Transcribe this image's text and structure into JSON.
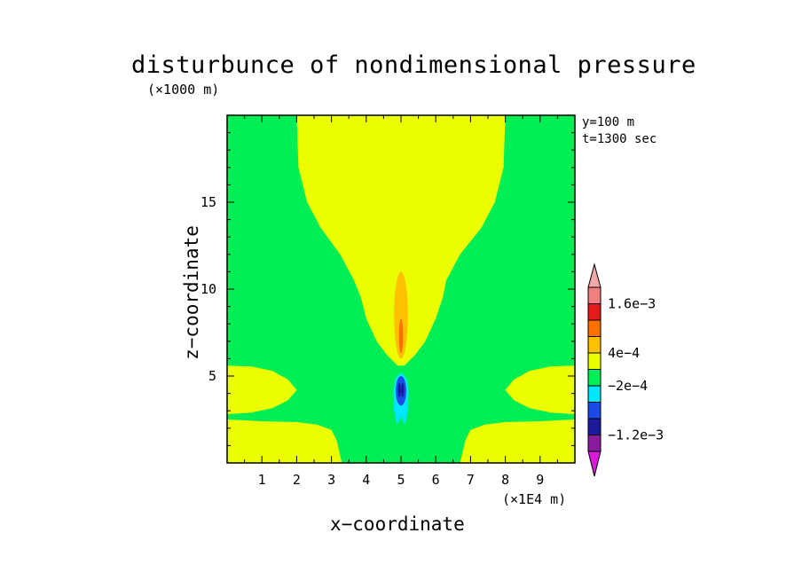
{
  "chart_data": {
    "type": "heatmap",
    "title": "disturbunce of nondimensional pressure",
    "xlabel": "x−coordinate",
    "ylabel": "z−coordinate",
    "x_unit": "(×1E4 m)",
    "y_unit": "(×1000 m)",
    "xlim": [
      0,
      10
    ],
    "ylim": [
      0,
      20
    ],
    "x_ticks": [
      1,
      2,
      3,
      4,
      5,
      6,
      7,
      8,
      9
    ],
    "y_ticks": [
      5,
      10,
      15
    ],
    "annotations": [
      "y=100 m",
      "t=1300 sec"
    ],
    "colorbar": {
      "levels": [
        "-1.6e-3",
        "-1.2e-3",
        "-8e-4",
        "-4e-4",
        "-2e-4",
        "0",
        "4e-4",
        "8e-4",
        "1.2e-3",
        "1.6e-3",
        "2e-3"
      ],
      "labels": [
        "−1.2e−3",
        "−2e−4",
        "4e−4",
        "1.6e−3"
      ],
      "colors": [
        "#d81bd8",
        "#8b1a9e",
        "#1a1a9a",
        "#1b4be6",
        "#00e6ff",
        "#00ee55",
        "#ebff00",
        "#ffc000",
        "#ff7000",
        "#e51a1a",
        "#f08080",
        "#f0a8a8"
      ]
    },
    "regions": [
      {
        "level": "-2e-4 to 0",
        "color": "#00ee55",
        "area": "background"
      },
      {
        "level": "0 to 4e-4",
        "color": "#ebff00",
        "area": "central plume x 2-8, z 5.5-20"
      },
      {
        "level": "0 to 4e-4",
        "color": "#ebff00",
        "area": "bottom left lobe x 0-3.3, z 0-2.5"
      },
      {
        "level": "0 to 4e-4",
        "color": "#ebff00",
        "area": "bottom right lobe x 6.7-10, z 0-2.5"
      },
      {
        "level": "0 to 4e-4",
        "color": "#ebff00",
        "area": "left lobe x 0-2, z 2.8-5.6"
      },
      {
        "level": "0 to 4e-4",
        "color": "#ebff00",
        "area": "right lobe x 8-10, z 2.8-5.6"
      },
      {
        "level": "4e-4 to 8e-4",
        "color": "#ffc000",
        "area": "x 4.8-5.2, z 6-11"
      },
      {
        "level": "8e-4 to 1.2e-3",
        "color": "#ff7000",
        "area": "x 4.95-5.05, z 6.5-8"
      },
      {
        "level": "-4e-4 to -2e-4",
        "color": "#00e6ff",
        "area": "x 4.8-5.2, z 2.2-5.2"
      },
      {
        "level": "-8e-4 to -4e-4",
        "color": "#1b4be6",
        "area": "x 4.85-5.15, z 3.3-5"
      },
      {
        "level": "-1.2e-3 to -8e-4",
        "color": "#1a1a9a",
        "area": "x 4.9-5.1, z 3.8-4.6"
      }
    ]
  }
}
